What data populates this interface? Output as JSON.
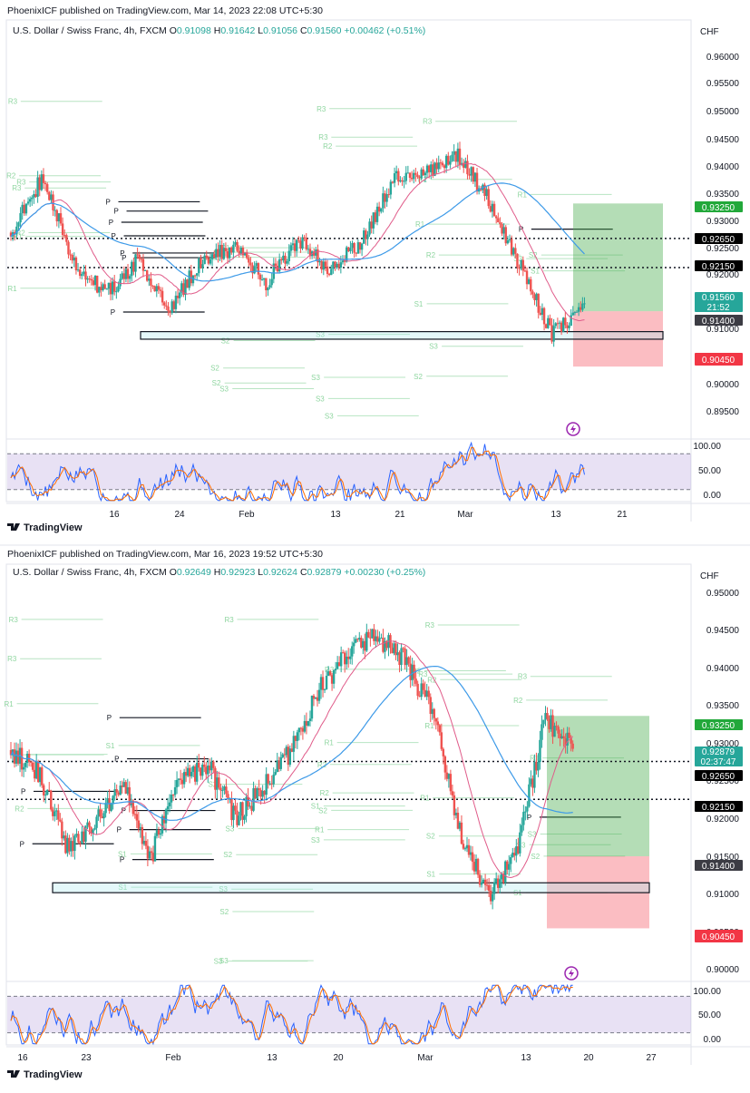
{
  "charts": [
    {
      "published": "PhoenixICF published on TradingView.com, Mar 14, 2023 22:08 UTC+5:30",
      "symbol": "U.S. Dollar / Swiss Franc, 4h, FXCM",
      "ohlc": {
        "o_label": "O",
        "o": "0.91098",
        "h_label": "H",
        "h": "0.91642",
        "l_label": "L",
        "l": "0.91056",
        "c_label": "C",
        "c": "0.91560",
        "change": "+0.00462 (+0.51%)"
      },
      "currency": "CHF",
      "price_ticks": [
        "0.96000",
        "0.95500",
        "0.95000",
        "0.94500",
        "0.94000",
        "0.93500",
        "0.93000",
        "0.92500",
        "0.92000",
        "0.91500",
        "0.91000",
        "0.90500",
        "0.90000",
        "0.89500"
      ],
      "osc_ticks": [
        "100.00",
        "50.00",
        "0.00"
      ],
      "time_ticks": [
        "16",
        "24",
        "Feb",
        "13",
        "21",
        "Mar",
        "13",
        "21"
      ],
      "price_labels": [
        {
          "text": "0.93250",
          "color": "#22a83a"
        },
        {
          "text": "0.92650",
          "color": "#000000"
        },
        {
          "text": "0.92150",
          "color": "#000000"
        },
        {
          "text": "0.91560",
          "sub": "21:52",
          "color": "#26a69a"
        },
        {
          "text": "0.91400",
          "color": "#3c3c44"
        },
        {
          "text": "0.90450",
          "color": "#f23645"
        }
      ],
      "pivot_texts": [
        "R3",
        "R3",
        "R3",
        "R2",
        "R2",
        "R1",
        "R1",
        "P",
        "P",
        "P",
        "P",
        "P",
        "P",
        "P",
        "S1",
        "S1",
        "S1",
        "S2",
        "S2",
        "S2",
        "S3",
        "S3",
        "S3",
        "S3",
        "S3",
        "R3",
        "R2",
        "R3",
        "R2",
        "R1",
        "S1",
        "S2",
        "S3",
        "R3",
        "R2",
        "R1",
        "P",
        "S1",
        "S2",
        "S3"
      ],
      "logo": "TradingView",
      "chart_data": {
        "type": "candlestick",
        "title": "U.S. Dollar / Swiss Franc, 4h, FXCM",
        "y_unit": "CHF",
        "ylim": [
          0.893,
          0.964
        ],
        "x_range": [
          "Jan 12, 2023",
          "Mar 26, 2023"
        ],
        "series": [
          {
            "name": "USDCHF 4h close (approx.)",
            "x": [
              "Jan 12",
              "Jan 16",
              "Jan 20",
              "Jan 24",
              "Jan 28",
              "Feb 1",
              "Feb 5",
              "Feb 9",
              "Feb 13",
              "Feb 17",
              "Feb 21",
              "Feb 25",
              "Mar 1",
              "Mar 5",
              "Mar 8",
              "Mar 10",
              "Mar 12",
              "Mar 13",
              "Mar 14"
            ],
            "values": [
              0.9275,
              0.937,
              0.922,
              0.917,
              0.923,
              0.9145,
              0.923,
              0.925,
              0.919,
              0.9265,
              0.921,
              0.926,
              0.9365,
              0.938,
              0.941,
              0.933,
              0.9215,
              0.91,
              0.9156
            ]
          }
        ],
        "levels": [
          {
            "name": "take profit",
            "value": 0.9325
          },
          {
            "name": "resistance",
            "value": 0.9265
          },
          {
            "name": "resistance",
            "value": 0.9215
          },
          {
            "name": "entry",
            "value": 0.914
          },
          {
            "name": "stop loss",
            "value": 0.9045
          }
        ],
        "oscillator": {
          "ylim": [
            0,
            100
          ],
          "levels": [
            80,
            20
          ]
        }
      }
    },
    {
      "published": "PhoenixICF published on TradingView.com, Mar 16, 2023 19:52 UTC+5:30",
      "symbol": "U.S. Dollar / Swiss Franc, 4h, FXCM",
      "ohlc": {
        "o_label": "O",
        "o": "0.92649",
        "h_label": "H",
        "h": "0.92923",
        "l_label": "L",
        "l": "0.92624",
        "c_label": "C",
        "c": "0.92879",
        "change": "+0.00230 (+0.25%)"
      },
      "currency": "CHF",
      "price_ticks": [
        "0.95000",
        "0.94500",
        "0.94000",
        "0.93500",
        "0.93000",
        "0.92500",
        "0.92000",
        "0.91500",
        "0.91000",
        "0.90500",
        "0.90000"
      ],
      "osc_ticks": [
        "100.00",
        "50.00",
        "0.00"
      ],
      "time_ticks": [
        "16",
        "23",
        "Feb",
        "13",
        "20",
        "Mar",
        "13",
        "20",
        "27"
      ],
      "price_labels": [
        {
          "text": "0.93250",
          "color": "#22a83a"
        },
        {
          "text": "0.92879",
          "sub": "02:37:47",
          "color": "#26a69a"
        },
        {
          "text": "0.92650",
          "color": "#000000"
        },
        {
          "text": "0.92150",
          "color": "#000000"
        },
        {
          "text": "0.91400",
          "color": "#3c3c44"
        },
        {
          "text": "0.90450",
          "color": "#f23645"
        }
      ],
      "pivot_texts": [
        "R3",
        "R2",
        "R1",
        "R3",
        "R2",
        "R1",
        "P",
        "P",
        "P",
        "P",
        "P",
        "P",
        "P",
        "S1",
        "S1",
        "S1",
        "S2",
        "S2",
        "S2",
        "S3",
        "S3",
        "S3",
        "S3",
        "R3",
        "R2",
        "R1",
        "R3",
        "R2",
        "R1",
        "S1",
        "S2",
        "S3",
        "R3",
        "R2",
        "R1",
        "R3",
        "R2",
        "R1",
        "S1",
        "S2",
        "S3",
        "R3",
        "R2",
        "R1",
        "P",
        "S1",
        "S2",
        "S3"
      ],
      "logo": "TradingView",
      "chart_data": {
        "type": "candlestick",
        "title": "U.S. Dollar / Swiss Franc, 4h, FXCM",
        "y_unit": "CHF",
        "ylim": [
          0.8975,
          0.9525
        ],
        "x_range": [
          "Jan 12, 2023",
          "Mar 30, 2023"
        ],
        "series": [
          {
            "name": "USDCHF 4h close (approx.)",
            "x": [
              "Jan 12",
              "Jan 16",
              "Jan 20",
              "Jan 24",
              "Jan 28",
              "Feb 1",
              "Feb 5",
              "Feb 9",
              "Feb 13",
              "Feb 17",
              "Feb 21",
              "Feb 25",
              "Mar 1",
              "Mar 5",
              "Mar 8",
              "Mar 10",
              "Mar 12",
              "Mar 13",
              "Mar 14",
              "Mar 15",
              "Mar 16"
            ],
            "values": [
              0.928,
              0.925,
              0.915,
              0.919,
              0.923,
              0.914,
              0.924,
              0.926,
              0.919,
              0.923,
              0.928,
              0.936,
              0.941,
              0.943,
              0.94,
              0.933,
              0.917,
              0.909,
              0.9145,
              0.932,
              0.9288
            ]
          }
        ],
        "levels": [
          {
            "name": "take profit",
            "value": 0.9325
          },
          {
            "name": "resistance",
            "value": 0.9265
          },
          {
            "name": "resistance",
            "value": 0.9215
          },
          {
            "name": "entry",
            "value": 0.914
          },
          {
            "name": "stop loss",
            "value": 0.9045
          }
        ],
        "oscillator": {
          "ylim": [
            0,
            100
          ],
          "levels": [
            80,
            20
          ]
        }
      }
    }
  ]
}
